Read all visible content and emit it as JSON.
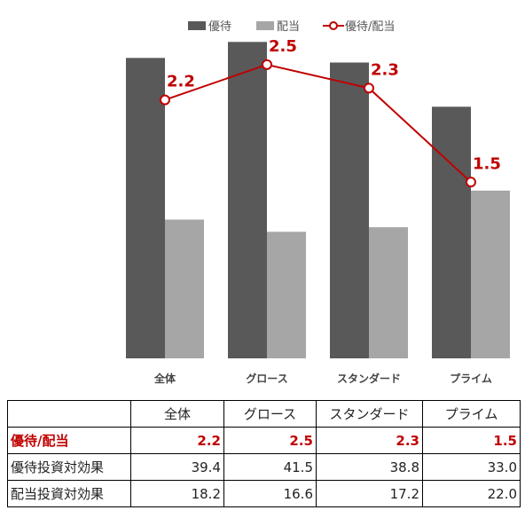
{
  "chart_data": {
    "type": "bar",
    "categories": [
      "全体",
      "グロース",
      "スタンダード",
      "プライム"
    ],
    "series": [
      {
        "name": "優待",
        "kind": "bar",
        "color": "#595959",
        "values": [
          39.4,
          41.5,
          38.8,
          33.0
        ]
      },
      {
        "name": "配当",
        "kind": "bar",
        "color": "#a6a6a6",
        "values": [
          18.2,
          16.6,
          17.2,
          22.0
        ]
      },
      {
        "name": "優待/配当",
        "kind": "line",
        "color": "#c00000",
        "axis": "secondary",
        "values": [
          2.2,
          2.5,
          2.3,
          1.5
        ]
      }
    ],
    "ratio_labels": [
      "2.2",
      "2.5",
      "2.3",
      "1.5"
    ],
    "ylim": [
      0,
      47
    ],
    "y2lim": [
      0,
      3.05
    ],
    "grid": false,
    "legend_position": "top"
  },
  "table": {
    "header": [
      "",
      "全体",
      "グロース",
      "スタンダード",
      "プライム"
    ],
    "rows": [
      {
        "label": "優待/配当",
        "values": [
          "2.2",
          "2.5",
          "2.3",
          "1.5"
        ]
      },
      {
        "label": "優待投資対効果",
        "values": [
          "39.4",
          "41.5",
          "38.8",
          "33.0"
        ]
      },
      {
        "label": "配当投資対効果",
        "values": [
          "18.2",
          "16.6",
          "17.2",
          "22.0"
        ]
      }
    ]
  }
}
